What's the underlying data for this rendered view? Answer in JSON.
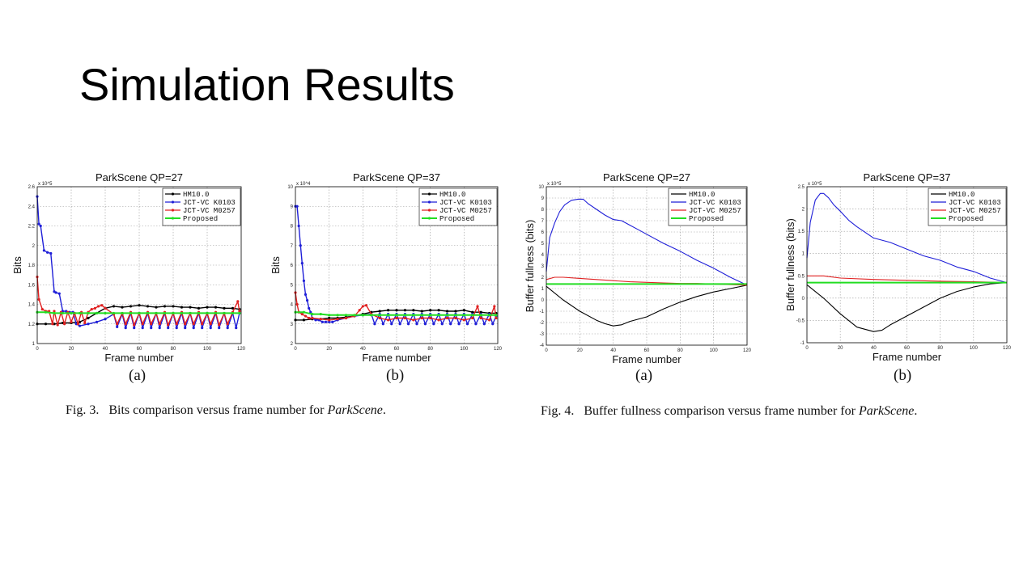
{
  "slide": {
    "title": "Simulation Results"
  },
  "figures": [
    {
      "label": "Fig. 3.",
      "text": "Bits comparison versus frame number for ",
      "italic": "ParkScene",
      "end": "."
    },
    {
      "label": "Fig. 4.",
      "text": "Buffer fullness comparison versus frame number for ",
      "italic": "ParkScene",
      "end": "."
    }
  ],
  "chart_data": [
    {
      "type": "line",
      "panel": "(a)",
      "title": "ParkScene QP=27",
      "xlabel": "Frame number",
      "ylabel": "Bits",
      "exponent": "x 10^5",
      "xlim": [
        0,
        120
      ],
      "ylim": [
        1,
        2.6
      ],
      "xticks": [
        "0",
        "20",
        "40",
        "60",
        "80",
        "100",
        "120"
      ],
      "yticks": [
        "1",
        "1.2",
        "1.4",
        "1.6",
        "1.8",
        "2",
        "2.2",
        "2.4",
        "2.6"
      ],
      "grid": true,
      "legend": "top-right",
      "series": [
        {
          "name": "HM10.0",
          "color": "#000000",
          "marker": true,
          "x": [
            0,
            5,
            10,
            15,
            20,
            25,
            30,
            35,
            40,
            45,
            50,
            55,
            60,
            65,
            70,
            75,
            80,
            85,
            90,
            95,
            100,
            105,
            110,
            115,
            119
          ],
          "values": [
            1.2,
            1.2,
            1.2,
            1.21,
            1.21,
            1.22,
            1.26,
            1.31,
            1.36,
            1.38,
            1.37,
            1.38,
            1.39,
            1.38,
            1.37,
            1.38,
            1.38,
            1.37,
            1.37,
            1.36,
            1.37,
            1.37,
            1.36,
            1.36,
            1.35
          ]
        },
        {
          "name": "JCT-VC K0103",
          "color": "#1f1fd8",
          "marker": true,
          "x": [
            0,
            1,
            2,
            4,
            6,
            8,
            10,
            11,
            13,
            15,
            17,
            19,
            21,
            23,
            25,
            30,
            35,
            40,
            45,
            47,
            50,
            52,
            55,
            57,
            60,
            62,
            65,
            67,
            70,
            72,
            75,
            77,
            80,
            82,
            85,
            87,
            90,
            92,
            95,
            97,
            100,
            102,
            105,
            107,
            110,
            112,
            115,
            117,
            119
          ],
          "values": [
            2.5,
            2.22,
            2.2,
            1.95,
            1.93,
            1.92,
            1.53,
            1.52,
            1.51,
            1.33,
            1.33,
            1.32,
            1.32,
            1.2,
            1.18,
            1.2,
            1.22,
            1.25,
            1.3,
            1.17,
            1.3,
            1.16,
            1.31,
            1.16,
            1.31,
            1.16,
            1.31,
            1.16,
            1.31,
            1.16,
            1.31,
            1.16,
            1.31,
            1.16,
            1.31,
            1.16,
            1.31,
            1.16,
            1.31,
            1.16,
            1.31,
            1.16,
            1.31,
            1.16,
            1.31,
            1.16,
            1.31,
            1.16,
            1.31
          ]
        },
        {
          "name": "JCT-VC M0257",
          "color": "#e02020",
          "marker": true,
          "x": [
            0,
            1,
            3,
            5,
            7,
            9,
            10,
            12,
            14,
            16,
            18,
            20,
            22,
            24,
            26,
            28,
            30,
            32,
            34,
            36,
            38,
            40,
            45,
            47,
            50,
            52,
            55,
            57,
            60,
            62,
            65,
            67,
            70,
            72,
            75,
            77,
            80,
            82,
            85,
            87,
            90,
            92,
            95,
            97,
            100,
            102,
            105,
            107,
            110,
            112,
            115,
            118,
            119
          ],
          "values": [
            1.68,
            1.45,
            1.35,
            1.33,
            1.33,
            1.2,
            1.33,
            1.19,
            1.32,
            1.2,
            1.32,
            1.22,
            1.31,
            1.2,
            1.32,
            1.21,
            1.32,
            1.35,
            1.36,
            1.38,
            1.39,
            1.36,
            1.3,
            1.2,
            1.31,
            1.2,
            1.32,
            1.19,
            1.31,
            1.2,
            1.32,
            1.2,
            1.31,
            1.2,
            1.32,
            1.19,
            1.31,
            1.2,
            1.32,
            1.2,
            1.31,
            1.2,
            1.32,
            1.2,
            1.31,
            1.2,
            1.32,
            1.19,
            1.31,
            1.2,
            1.32,
            1.43,
            1.33
          ]
        },
        {
          "name": "Proposed",
          "color": "#22dd22",
          "marker": true,
          "x": [
            0,
            5,
            10,
            15,
            20,
            25,
            30,
            35,
            40,
            45,
            50,
            55,
            60,
            65,
            70,
            75,
            80,
            85,
            90,
            95,
            100,
            105,
            110,
            115,
            119
          ],
          "values": [
            1.32,
            1.32,
            1.31,
            1.31,
            1.31,
            1.31,
            1.31,
            1.31,
            1.31,
            1.31,
            1.31,
            1.31,
            1.31,
            1.31,
            1.31,
            1.31,
            1.31,
            1.31,
            1.31,
            1.31,
            1.31,
            1.31,
            1.31,
            1.31,
            1.31
          ]
        }
      ]
    },
    {
      "type": "line",
      "panel": "(b)",
      "title": "ParkScene QP=37",
      "xlabel": "Frame number",
      "ylabel": "Bits",
      "exponent": "x 10^4",
      "xlim": [
        0,
        120
      ],
      "ylim": [
        2,
        10
      ],
      "xticks": [
        "0",
        "20",
        "40",
        "60",
        "80",
        "100",
        "120"
      ],
      "yticks": [
        "2",
        "3",
        "4",
        "5",
        "6",
        "7",
        "8",
        "9",
        "10"
      ],
      "grid": true,
      "legend": "top-right",
      "series": [
        {
          "name": "HM10.0",
          "color": "#000000",
          "marker": true,
          "x": [
            0,
            5,
            10,
            15,
            20,
            25,
            30,
            35,
            40,
            45,
            50,
            55,
            60,
            65,
            70,
            75,
            80,
            85,
            90,
            95,
            100,
            105,
            110,
            115,
            119
          ],
          "values": [
            3.2,
            3.2,
            3.25,
            3.25,
            3.3,
            3.3,
            3.35,
            3.4,
            3.5,
            3.6,
            3.65,
            3.7,
            3.7,
            3.7,
            3.7,
            3.65,
            3.7,
            3.7,
            3.65,
            3.65,
            3.7,
            3.6,
            3.6,
            3.55,
            3.55
          ]
        },
        {
          "name": "JCT-VC K0103",
          "color": "#1f1fd8",
          "marker": true,
          "x": [
            0,
            1,
            2,
            3,
            4,
            5,
            6,
            7,
            8,
            9,
            10,
            12,
            14,
            16,
            18,
            20,
            22,
            25,
            30,
            35,
            40,
            45,
            47,
            50,
            52,
            55,
            57,
            60,
            62,
            65,
            67,
            70,
            72,
            75,
            77,
            80,
            82,
            85,
            87,
            90,
            92,
            95,
            97,
            100,
            102,
            105,
            107,
            110,
            112,
            115,
            117,
            119
          ],
          "values": [
            9,
            9,
            8,
            7,
            6.1,
            5.2,
            4.5,
            4.2,
            3.8,
            3.6,
            3.3,
            3.2,
            3.2,
            3.1,
            3.1,
            3.1,
            3.1,
            3.2,
            3.3,
            3.4,
            3.45,
            3.5,
            3.0,
            3.5,
            3.0,
            3.5,
            3.0,
            3.5,
            3.0,
            3.5,
            3.0,
            3.5,
            3.0,
            3.5,
            3.0,
            3.5,
            3.0,
            3.5,
            3.0,
            3.5,
            3.0,
            3.5,
            3.0,
            3.5,
            3.0,
            3.5,
            3.0,
            3.5,
            3.0,
            3.5,
            3.0,
            3.4
          ]
        },
        {
          "name": "JCT-VC M0257",
          "color": "#e02020",
          "marker": true,
          "x": [
            0,
            1,
            2,
            4,
            6,
            8,
            10,
            15,
            20,
            25,
            30,
            35,
            38,
            40,
            42,
            45,
            50,
            55,
            60,
            65,
            70,
            75,
            80,
            85,
            90,
            95,
            100,
            105,
            108,
            110,
            115,
            118,
            119
          ],
          "values": [
            4.6,
            4.0,
            3.6,
            3.5,
            3.4,
            3.3,
            3.3,
            3.25,
            3.2,
            3.25,
            3.3,
            3.4,
            3.7,
            3.9,
            3.95,
            3.5,
            3.3,
            3.2,
            3.3,
            3.3,
            3.2,
            3.3,
            3.3,
            3.2,
            3.3,
            3.3,
            3.2,
            3.3,
            3.9,
            3.3,
            3.2,
            3.9,
            3.3
          ]
        },
        {
          "name": "Proposed",
          "color": "#22dd22",
          "marker": true,
          "x": [
            0,
            5,
            10,
            15,
            20,
            25,
            30,
            35,
            40,
            45,
            50,
            55,
            60,
            65,
            70,
            75,
            80,
            85,
            90,
            95,
            100,
            105,
            110,
            115,
            119
          ],
          "values": [
            3.6,
            3.6,
            3.5,
            3.5,
            3.45,
            3.45,
            3.45,
            3.45,
            3.45,
            3.45,
            3.45,
            3.45,
            3.45,
            3.45,
            3.45,
            3.45,
            3.45,
            3.45,
            3.45,
            3.45,
            3.45,
            3.45,
            3.45,
            3.45,
            3.45
          ]
        }
      ]
    },
    {
      "type": "line",
      "panel": "(a)",
      "title": "ParkScene QP=27",
      "xlabel": "Frame number",
      "ylabel": "Buffer fullness (bits)",
      "exponent": "x 10^5",
      "xlim": [
        0,
        120
      ],
      "ylim": [
        -4,
        10
      ],
      "xticks": [
        "0",
        "20",
        "40",
        "60",
        "80",
        "100",
        "120"
      ],
      "yticks": [
        "-4",
        "-3",
        "-2",
        "-1",
        "0",
        "1",
        "2",
        "3",
        "4",
        "5",
        "6",
        "7",
        "8",
        "9",
        "10"
      ],
      "grid": true,
      "legend": "top-right",
      "series": [
        {
          "name": "HM10.0",
          "color": "#000000",
          "marker": false,
          "x": [
            0,
            10,
            20,
            30,
            35,
            40,
            45,
            50,
            60,
            70,
            80,
            90,
            100,
            110,
            120
          ],
          "values": [
            1.2,
            0.0,
            -1.0,
            -1.8,
            -2.1,
            -2.3,
            -2.2,
            -1.9,
            -1.5,
            -0.8,
            -0.2,
            0.3,
            0.7,
            1.0,
            1.3
          ]
        },
        {
          "name": "JCT-VC K0103",
          "color": "#1f1fd8",
          "marker": false,
          "x": [
            0,
            2,
            5,
            8,
            11,
            15,
            19,
            22,
            25,
            30,
            35,
            40,
            45,
            50,
            55,
            60,
            70,
            80,
            90,
            100,
            110,
            120
          ],
          "values": [
            2.5,
            5.5,
            6.8,
            7.8,
            8.4,
            8.8,
            8.9,
            8.9,
            8.5,
            8.0,
            7.5,
            7.1,
            7.0,
            6.6,
            6.2,
            5.8,
            5.0,
            4.3,
            3.5,
            2.8,
            2.0,
            1.3
          ]
        },
        {
          "name": "JCT-VC M0257",
          "color": "#e02020",
          "marker": false,
          "x": [
            0,
            5,
            10,
            20,
            30,
            40,
            50,
            60,
            70,
            80,
            90,
            100,
            110,
            120
          ],
          "values": [
            1.8,
            2.0,
            2.0,
            1.9,
            1.8,
            1.7,
            1.6,
            1.55,
            1.5,
            1.45,
            1.45,
            1.4,
            1.35,
            1.3
          ]
        },
        {
          "name": "Proposed",
          "color": "#22dd22",
          "marker": false,
          "x": [
            0,
            20,
            40,
            60,
            80,
            100,
            120
          ],
          "values": [
            1.4,
            1.4,
            1.4,
            1.4,
            1.4,
            1.4,
            1.4
          ]
        }
      ]
    },
    {
      "type": "line",
      "panel": "(b)",
      "title": "ParkScene QP=37",
      "xlabel": "Frame number",
      "ylabel": "Buffer fullness (bits)",
      "exponent": "x 10^5",
      "xlim": [
        0,
        120
      ],
      "ylim": [
        -1,
        2.5
      ],
      "xticks": [
        "0",
        "20",
        "40",
        "60",
        "80",
        "100",
        "120"
      ],
      "yticks": [
        "-1",
        "-0.5",
        "0",
        "0.5",
        "1",
        "1.5",
        "2",
        "2.5"
      ],
      "grid": true,
      "legend": "top-right",
      "series": [
        {
          "name": "HM10.0",
          "color": "#000000",
          "marker": false,
          "x": [
            0,
            10,
            20,
            30,
            40,
            45,
            50,
            60,
            70,
            80,
            90,
            100,
            110,
            120
          ],
          "values": [
            0.3,
            0.0,
            -0.35,
            -0.65,
            -0.75,
            -0.72,
            -0.6,
            -0.4,
            -0.2,
            0.0,
            0.15,
            0.25,
            0.32,
            0.35
          ]
        },
        {
          "name": "JCT-VC K0103",
          "color": "#1f1fd8",
          "marker": false,
          "x": [
            0,
            2,
            5,
            8,
            10,
            13,
            16,
            20,
            25,
            30,
            40,
            50,
            60,
            70,
            80,
            90,
            100,
            110,
            120
          ],
          "values": [
            0.9,
            1.7,
            2.2,
            2.35,
            2.35,
            2.25,
            2.1,
            1.95,
            1.75,
            1.6,
            1.35,
            1.25,
            1.1,
            0.95,
            0.85,
            0.7,
            0.6,
            0.45,
            0.35
          ]
        },
        {
          "name": "JCT-VC M0257",
          "color": "#e02020",
          "marker": false,
          "x": [
            0,
            10,
            20,
            40,
            60,
            80,
            100,
            120
          ],
          "values": [
            0.5,
            0.5,
            0.45,
            0.42,
            0.4,
            0.38,
            0.37,
            0.35
          ]
        },
        {
          "name": "Proposed",
          "color": "#22dd22",
          "marker": false,
          "x": [
            0,
            40,
            80,
            120
          ],
          "values": [
            0.35,
            0.35,
            0.35,
            0.35
          ]
        }
      ]
    }
  ]
}
